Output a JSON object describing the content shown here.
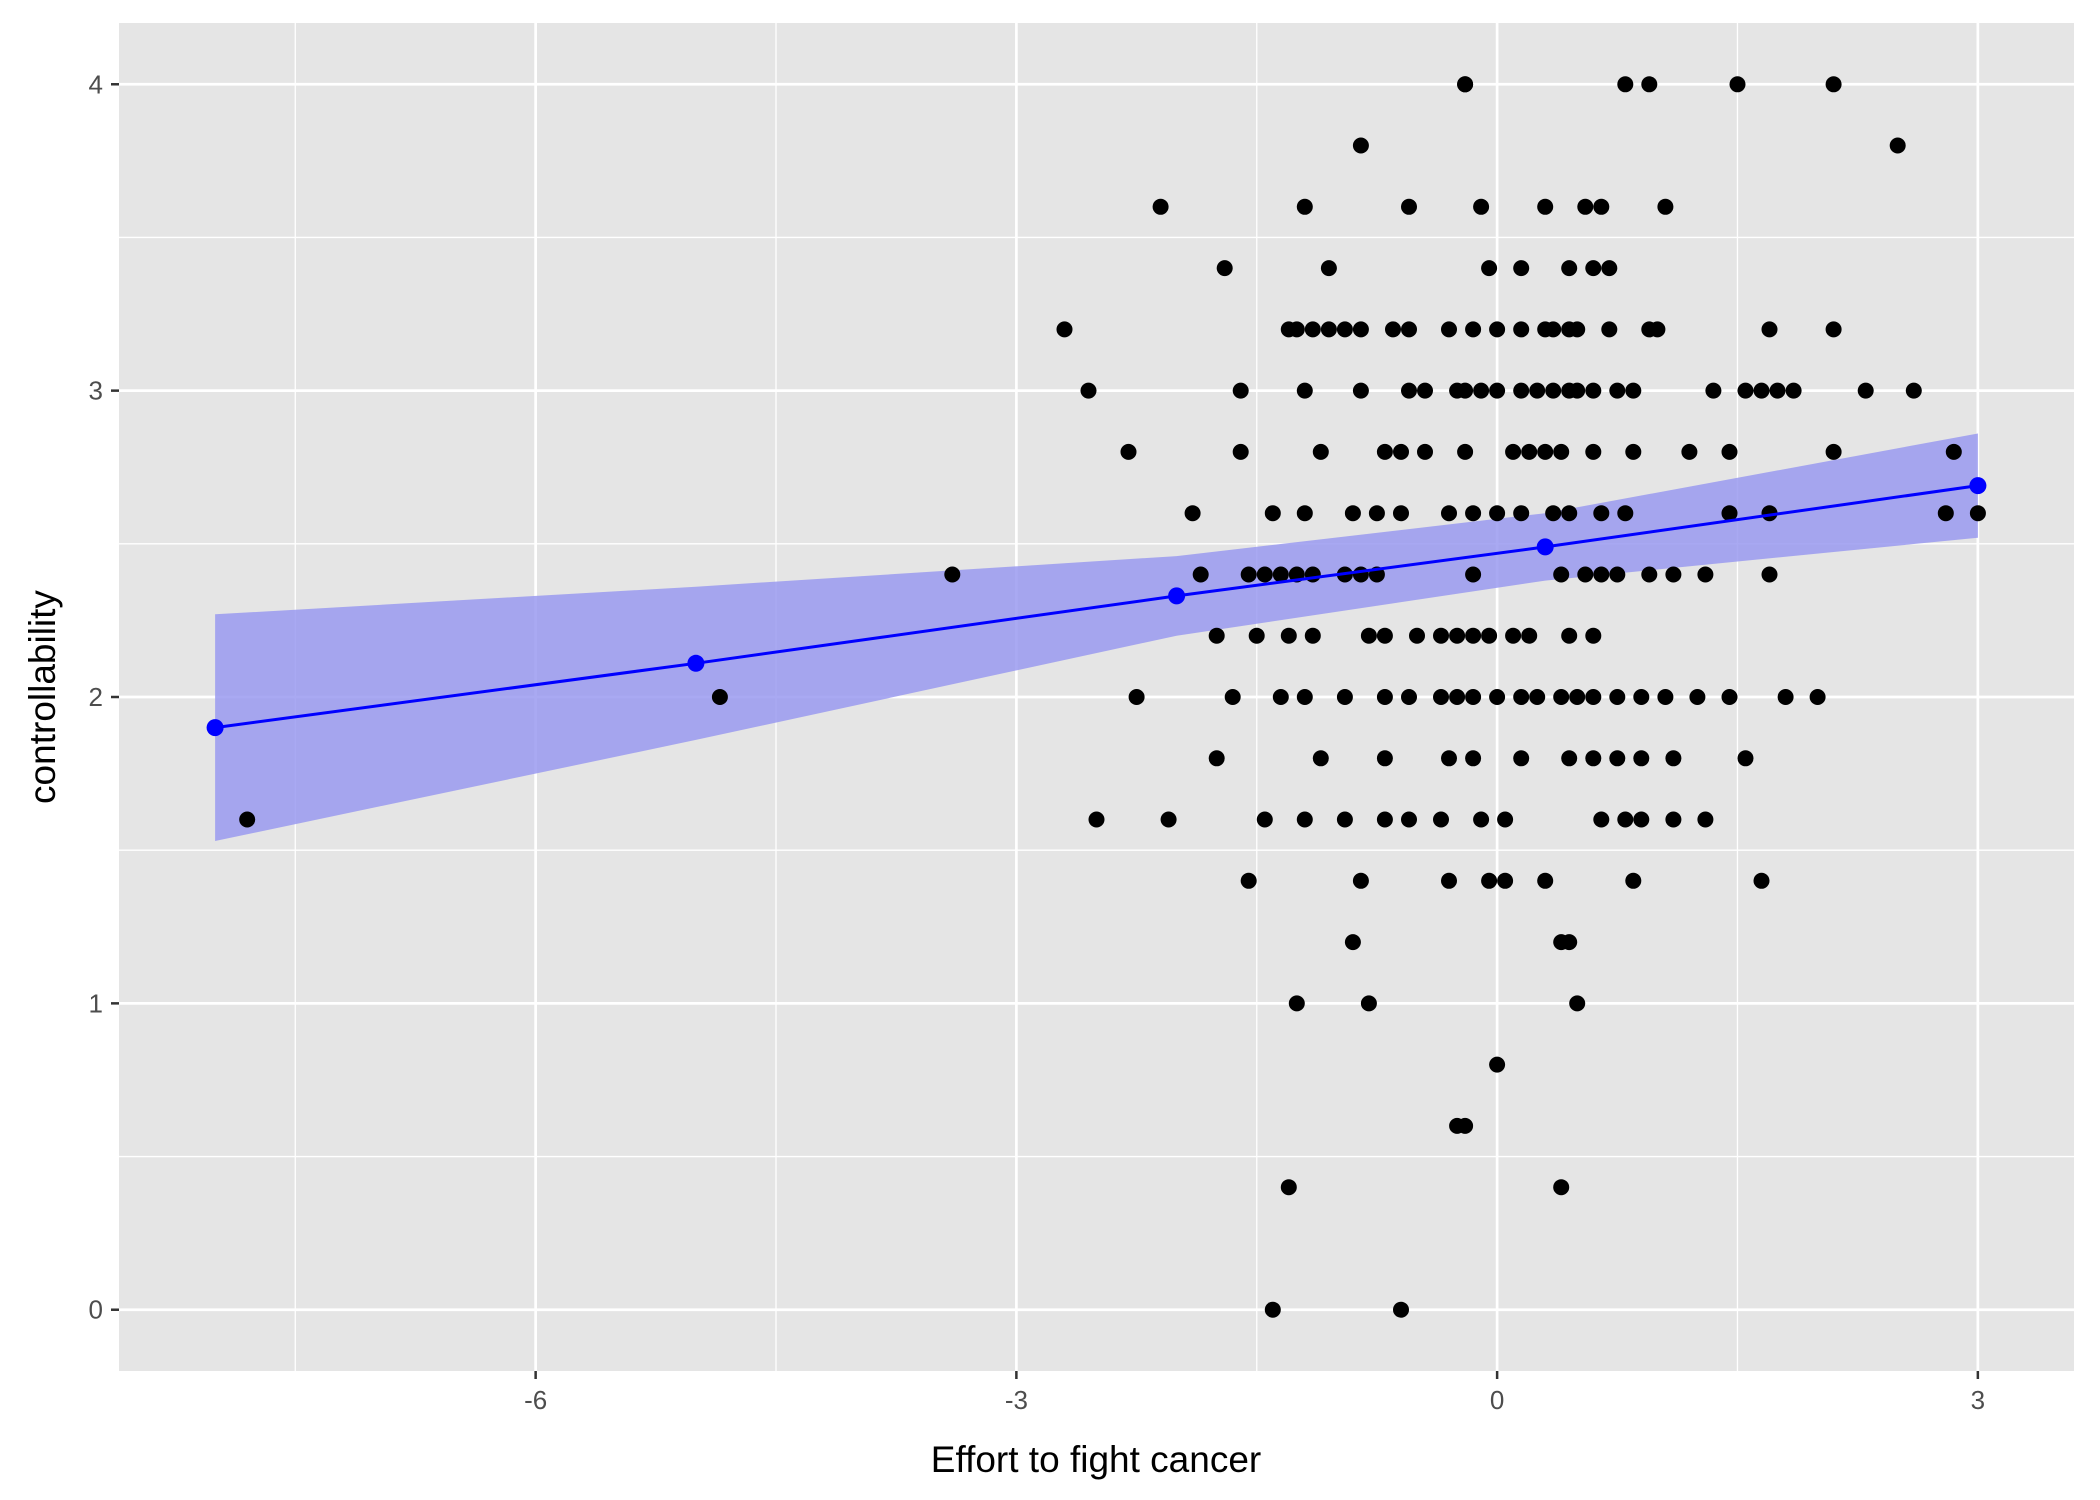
{
  "chart_data": {
    "type": "scatter",
    "title": "",
    "xlabel": "Effort to fight cancer",
    "ylabel": "controllability",
    "xlim": [
      -8.6,
      3.6
    ],
    "ylim": [
      -0.2,
      4.2
    ],
    "x_ticks": [
      -6,
      -3,
      0,
      3
    ],
    "y_ticks": [
      0,
      1,
      2,
      3,
      4
    ],
    "x_tick_labels": [
      "-6",
      "-3",
      "0",
      "3"
    ],
    "y_tick_labels": [
      "0",
      "1",
      "2",
      "3",
      "4"
    ],
    "grid": true,
    "legend": "none",
    "colors": {
      "panel": "#e5e5e5",
      "grid": "#ffffff",
      "points": "#000000",
      "fit_line": "#0000ff",
      "ribbon": "#9a9af0"
    },
    "series": [
      {
        "type": "scatter",
        "points": [
          [
            -0.2,
            4.0
          ],
          [
            0.8,
            4.0
          ],
          [
            0.95,
            4.0
          ],
          [
            1.5,
            4.0
          ],
          [
            2.1,
            4.0
          ],
          [
            -0.2,
            4.0
          ],
          [
            -0.85,
            3.8
          ],
          [
            2.5,
            3.8
          ],
          [
            -2.1,
            3.6
          ],
          [
            -1.2,
            3.6
          ],
          [
            -0.55,
            3.6
          ],
          [
            -0.1,
            3.6
          ],
          [
            0.3,
            3.6
          ],
          [
            0.55,
            3.6
          ],
          [
            0.65,
            3.6
          ],
          [
            1.05,
            3.6
          ],
          [
            -1.7,
            3.4
          ],
          [
            -1.05,
            3.4
          ],
          [
            -0.05,
            3.4
          ],
          [
            0.15,
            3.4
          ],
          [
            0.45,
            3.4
          ],
          [
            0.6,
            3.4
          ],
          [
            0.7,
            3.4
          ],
          [
            -2.7,
            3.2
          ],
          [
            -1.3,
            3.2
          ],
          [
            -1.25,
            3.2
          ],
          [
            -1.15,
            3.2
          ],
          [
            -1.05,
            3.2
          ],
          [
            -0.95,
            3.2
          ],
          [
            -0.85,
            3.2
          ],
          [
            -0.65,
            3.2
          ],
          [
            -0.55,
            3.2
          ],
          [
            -0.3,
            3.2
          ],
          [
            -0.15,
            3.2
          ],
          [
            0.0,
            3.2
          ],
          [
            0.15,
            3.2
          ],
          [
            0.3,
            3.2
          ],
          [
            0.35,
            3.2
          ],
          [
            0.45,
            3.2
          ],
          [
            0.5,
            3.2
          ],
          [
            0.7,
            3.2
          ],
          [
            0.95,
            3.2
          ],
          [
            1.0,
            3.2
          ],
          [
            1.7,
            3.2
          ],
          [
            2.1,
            3.2
          ],
          [
            -2.55,
            3.0
          ],
          [
            -1.6,
            3.0
          ],
          [
            -1.2,
            3.0
          ],
          [
            -0.85,
            3.0
          ],
          [
            -0.55,
            3.0
          ],
          [
            -0.45,
            3.0
          ],
          [
            -0.25,
            3.0
          ],
          [
            -0.2,
            3.0
          ],
          [
            -0.1,
            3.0
          ],
          [
            0.0,
            3.0
          ],
          [
            0.15,
            3.0
          ],
          [
            0.25,
            3.0
          ],
          [
            0.35,
            3.0
          ],
          [
            0.45,
            3.0
          ],
          [
            0.5,
            3.0
          ],
          [
            0.6,
            3.0
          ],
          [
            0.75,
            3.0
          ],
          [
            0.85,
            3.0
          ],
          [
            1.35,
            3.0
          ],
          [
            1.55,
            3.0
          ],
          [
            1.65,
            3.0
          ],
          [
            1.75,
            3.0
          ],
          [
            1.85,
            3.0
          ],
          [
            2.3,
            3.0
          ],
          [
            2.6,
            3.0
          ],
          [
            -2.3,
            2.8
          ],
          [
            -1.6,
            2.8
          ],
          [
            -1.1,
            2.8
          ],
          [
            -0.7,
            2.8
          ],
          [
            -0.6,
            2.8
          ],
          [
            -0.45,
            2.8
          ],
          [
            -0.2,
            2.8
          ],
          [
            0.1,
            2.8
          ],
          [
            0.2,
            2.8
          ],
          [
            0.3,
            2.8
          ],
          [
            0.4,
            2.8
          ],
          [
            0.6,
            2.8
          ],
          [
            0.85,
            2.8
          ],
          [
            1.2,
            2.8
          ],
          [
            1.45,
            2.8
          ],
          [
            2.1,
            2.8
          ],
          [
            2.85,
            2.8
          ],
          [
            -1.9,
            2.6
          ],
          [
            -1.4,
            2.6
          ],
          [
            -1.2,
            2.6
          ],
          [
            -0.9,
            2.6
          ],
          [
            -0.75,
            2.6
          ],
          [
            -0.6,
            2.6
          ],
          [
            -0.3,
            2.6
          ],
          [
            -0.15,
            2.6
          ],
          [
            0.0,
            2.6
          ],
          [
            0.15,
            2.6
          ],
          [
            0.35,
            2.6
          ],
          [
            0.45,
            2.6
          ],
          [
            0.65,
            2.6
          ],
          [
            0.8,
            2.6
          ],
          [
            1.45,
            2.6
          ],
          [
            1.7,
            2.6
          ],
          [
            2.8,
            2.6
          ],
          [
            3.0,
            2.6
          ],
          [
            -3.4,
            2.4
          ],
          [
            -1.85,
            2.4
          ],
          [
            -1.55,
            2.4
          ],
          [
            -1.45,
            2.4
          ],
          [
            -1.35,
            2.4
          ],
          [
            -1.25,
            2.4
          ],
          [
            -1.15,
            2.4
          ],
          [
            -0.95,
            2.4
          ],
          [
            -0.85,
            2.4
          ],
          [
            -0.75,
            2.4
          ],
          [
            -0.15,
            2.4
          ],
          [
            0.4,
            2.4
          ],
          [
            0.55,
            2.4
          ],
          [
            0.65,
            2.4
          ],
          [
            0.75,
            2.4
          ],
          [
            0.95,
            2.4
          ],
          [
            1.1,
            2.4
          ],
          [
            1.3,
            2.4
          ],
          [
            1.7,
            2.4
          ],
          [
            -1.75,
            2.2
          ],
          [
            -1.5,
            2.2
          ],
          [
            -1.3,
            2.2
          ],
          [
            -1.15,
            2.2
          ],
          [
            -0.8,
            2.2
          ],
          [
            -0.7,
            2.2
          ],
          [
            -0.5,
            2.2
          ],
          [
            -0.35,
            2.2
          ],
          [
            -0.25,
            2.2
          ],
          [
            -0.15,
            2.2
          ],
          [
            -0.05,
            2.2
          ],
          [
            0.1,
            2.2
          ],
          [
            0.2,
            2.2
          ],
          [
            0.45,
            2.2
          ],
          [
            0.6,
            2.2
          ],
          [
            -4.85,
            2.0
          ],
          [
            -2.25,
            2.0
          ],
          [
            -1.65,
            2.0
          ],
          [
            -1.35,
            2.0
          ],
          [
            -1.2,
            2.0
          ],
          [
            -0.95,
            2.0
          ],
          [
            -0.7,
            2.0
          ],
          [
            -0.55,
            2.0
          ],
          [
            -0.35,
            2.0
          ],
          [
            -0.25,
            2.0
          ],
          [
            -0.15,
            2.0
          ],
          [
            0.0,
            2.0
          ],
          [
            0.15,
            2.0
          ],
          [
            0.25,
            2.0
          ],
          [
            0.4,
            2.0
          ],
          [
            0.5,
            2.0
          ],
          [
            0.6,
            2.0
          ],
          [
            0.75,
            2.0
          ],
          [
            0.9,
            2.0
          ],
          [
            1.05,
            2.0
          ],
          [
            1.25,
            2.0
          ],
          [
            1.45,
            2.0
          ],
          [
            1.8,
            2.0
          ],
          [
            2.0,
            2.0
          ],
          [
            -1.75,
            1.8
          ],
          [
            -1.1,
            1.8
          ],
          [
            -0.7,
            1.8
          ],
          [
            -0.3,
            1.8
          ],
          [
            -0.15,
            1.8
          ],
          [
            0.15,
            1.8
          ],
          [
            0.45,
            1.8
          ],
          [
            0.6,
            1.8
          ],
          [
            0.75,
            1.8
          ],
          [
            0.9,
            1.8
          ],
          [
            1.1,
            1.8
          ],
          [
            1.55,
            1.8
          ],
          [
            -7.8,
            1.6
          ],
          [
            -2.5,
            1.6
          ],
          [
            -2.05,
            1.6
          ],
          [
            -1.45,
            1.6
          ],
          [
            -1.2,
            1.6
          ],
          [
            -0.95,
            1.6
          ],
          [
            -0.7,
            1.6
          ],
          [
            -0.55,
            1.6
          ],
          [
            -0.35,
            1.6
          ],
          [
            -0.1,
            1.6
          ],
          [
            0.05,
            1.6
          ],
          [
            0.65,
            1.6
          ],
          [
            0.8,
            1.6
          ],
          [
            0.9,
            1.6
          ],
          [
            1.1,
            1.6
          ],
          [
            1.3,
            1.6
          ],
          [
            -1.55,
            1.4
          ],
          [
            -0.85,
            1.4
          ],
          [
            -0.3,
            1.4
          ],
          [
            -0.05,
            1.4
          ],
          [
            0.05,
            1.4
          ],
          [
            0.3,
            1.4
          ],
          [
            0.85,
            1.4
          ],
          [
            1.65,
            1.4
          ],
          [
            -0.9,
            1.2
          ],
          [
            0.4,
            1.2
          ],
          [
            0.45,
            1.2
          ],
          [
            -1.25,
            1.0
          ],
          [
            -0.8,
            1.0
          ],
          [
            0.5,
            1.0
          ],
          [
            0.0,
            0.8
          ],
          [
            -0.25,
            0.6
          ],
          [
            -0.2,
            0.6
          ],
          [
            -1.3,
            0.4
          ],
          [
            0.4,
            0.4
          ],
          [
            -1.4,
            0.0
          ],
          [
            -0.6,
            0.0
          ]
        ]
      },
      {
        "type": "line",
        "points": [
          [
            -8.0,
            1.9
          ],
          [
            -5.0,
            2.11
          ],
          [
            -2.0,
            2.33
          ],
          [
            0.3,
            2.49
          ],
          [
            3.0,
            2.69
          ]
        ]
      },
      {
        "type": "area",
        "x": [
          -8.0,
          -5.0,
          -2.0,
          0.3,
          3.0
        ],
        "upper": [
          2.27,
          2.36,
          2.46,
          2.6,
          2.86
        ],
        "lower": [
          1.53,
          1.86,
          2.2,
          2.38,
          2.52
        ]
      }
    ]
  }
}
